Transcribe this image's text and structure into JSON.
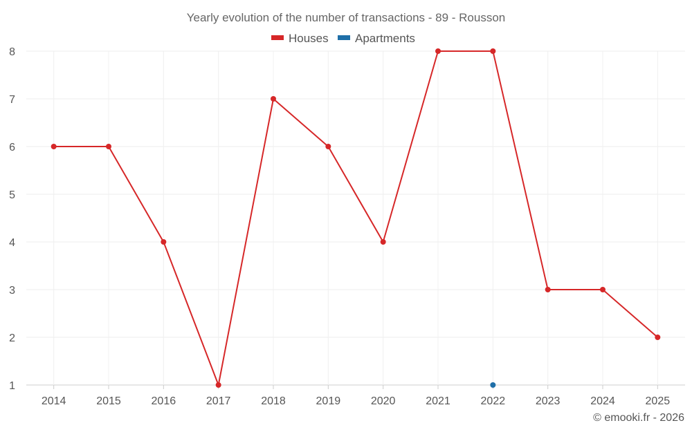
{
  "chart_data": {
    "type": "line",
    "title": "Yearly evolution of the number of transactions - 89 - Rousson",
    "categories": [
      "2014",
      "2015",
      "2016",
      "2017",
      "2018",
      "2019",
      "2020",
      "2021",
      "2022",
      "2023",
      "2024",
      "2025"
    ],
    "series": [
      {
        "name": "Houses",
        "color": "#d62728",
        "values": [
          6,
          6,
          4,
          1,
          7,
          6,
          4,
          8,
          8,
          3,
          3,
          2
        ]
      },
      {
        "name": "Apartments",
        "color": "#1f6fa8",
        "values": [
          null,
          null,
          null,
          null,
          null,
          null,
          null,
          null,
          1,
          null,
          null,
          null
        ]
      }
    ],
    "y_ticks": [
      "1",
      "2",
      "3",
      "4",
      "5",
      "6",
      "7",
      "8"
    ],
    "ylim": [
      1,
      8
    ],
    "xlabel": "",
    "ylabel": "",
    "grid": true,
    "legend_position": "top"
  },
  "credit": "© emooki.fr - 2026"
}
